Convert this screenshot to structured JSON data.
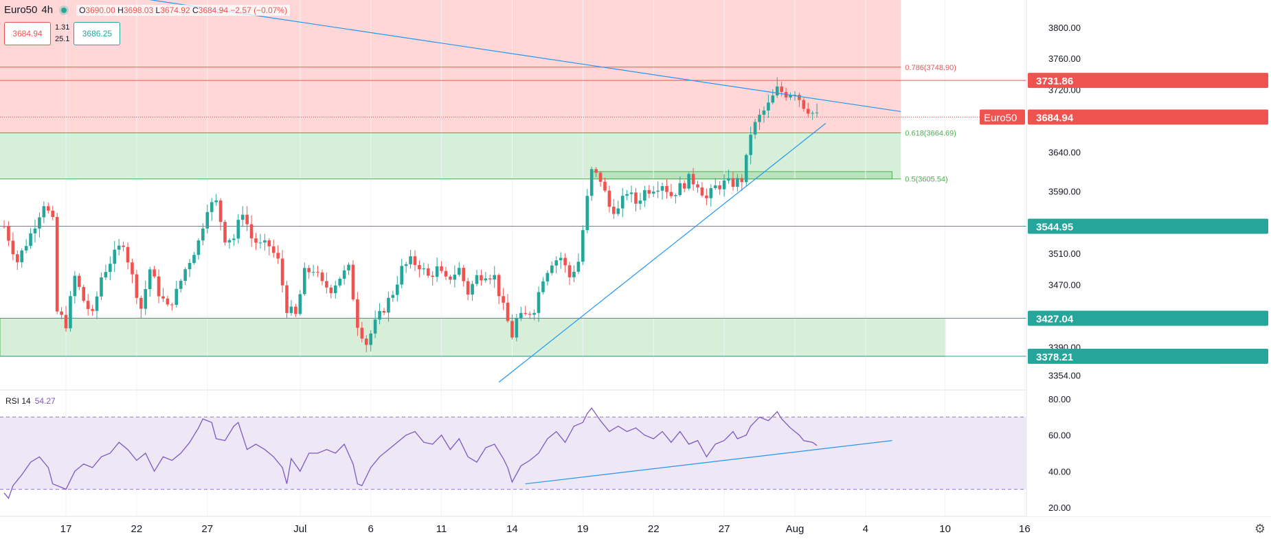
{
  "header": {
    "symbol": "Euro50",
    "interval": "4h",
    "ohlc": {
      "o": "3690.00",
      "h": "3698.03",
      "l": "3674.92",
      "c": "3684.94",
      "chg": "−2.57 (−0.07%)"
    },
    "sell_price": "3684.94",
    "buy_price": "3686.25",
    "spread_top": "1.31",
    "spread_bottom": "25.1"
  },
  "colors": {
    "up": "#26a69a",
    "down": "#ef5350",
    "red_zone": "#ffd7d7",
    "green_zone": "#d7efd9",
    "trend": "#2196f3",
    "rsi": "#7e57c2",
    "rsi_band": "#ede7f6"
  },
  "chart_data": [
    {
      "type": "candlestick",
      "y_range": [
        3335,
        3835
      ],
      "y_ticks": [
        "3800.00",
        "3760.00",
        "3720.00",
        "3640.00",
        "3590.00",
        "3510.00",
        "3470.00",
        "3390.00",
        "3354.00"
      ],
      "x_ticks": [
        {
          "label": "17",
          "bar": 14
        },
        {
          "label": "22",
          "bar": 30
        },
        {
          "label": "27",
          "bar": 46
        },
        {
          "label": "Jul",
          "bar": 67
        },
        {
          "label": "6",
          "bar": 83
        },
        {
          "label": "11",
          "bar": 99
        },
        {
          "label": "14",
          "bar": 115
        },
        {
          "label": "19",
          "bar": 131
        },
        {
          "label": "22",
          "bar": 147
        },
        {
          "label": "27",
          "bar": 163
        },
        {
          "label": "Aug",
          "bar": 179
        },
        {
          "label": "4",
          "bar": 195
        },
        {
          "label": "10",
          "bar": 213
        },
        {
          "label": "16",
          "bar": 231
        }
      ],
      "close_path": [
        [
          0,
          3545
        ],
        [
          3,
          3500
        ],
        [
          6,
          3535
        ],
        [
          9,
          3575
        ],
        [
          11,
          3550
        ],
        [
          12,
          3435
        ],
        [
          14,
          3420
        ],
        [
          16,
          3480
        ],
        [
          18,
          3450
        ],
        [
          20,
          3430
        ],
        [
          22,
          3480
        ],
        [
          24,
          3500
        ],
        [
          27,
          3525
        ],
        [
          29,
          3480
        ],
        [
          31,
          3440
        ],
        [
          33,
          3490
        ],
        [
          35,
          3460
        ],
        [
          37,
          3440
        ],
        [
          39,
          3460
        ],
        [
          41,
          3490
        ],
        [
          44,
          3525
        ],
        [
          46,
          3570
        ],
        [
          48,
          3575
        ],
        [
          50,
          3530
        ],
        [
          52,
          3530
        ],
        [
          54,
          3565
        ],
        [
          56,
          3530
        ],
        [
          58,
          3520
        ],
        [
          60,
          3520
        ],
        [
          62,
          3500
        ],
        [
          64,
          3440
        ],
        [
          66,
          3430
        ],
        [
          68,
          3485
        ],
        [
          70,
          3490
        ],
        [
          72,
          3470
        ],
        [
          74,
          3465
        ],
        [
          76,
          3480
        ],
        [
          78,
          3490
        ],
        [
          80,
          3420
        ],
        [
          82,
          3395
        ],
        [
          84,
          3420
        ],
        [
          86,
          3440
        ],
        [
          88,
          3460
        ],
        [
          90,
          3490
        ],
        [
          92,
          3500
        ],
        [
          94,
          3495
        ],
        [
          96,
          3480
        ],
        [
          98,
          3490
        ],
        [
          100,
          3475
        ],
        [
          103,
          3490
        ],
        [
          105,
          3460
        ],
        [
          107,
          3480
        ],
        [
          109,
          3485
        ],
        [
          111,
          3480
        ],
        [
          113,
          3440
        ],
        [
          115,
          3405
        ],
        [
          116,
          3425
        ],
        [
          118,
          3430
        ],
        [
          120,
          3440
        ],
        [
          122,
          3480
        ],
        [
          124,
          3500
        ],
        [
          126,
          3505
        ],
        [
          128,
          3480
        ],
        [
          130,
          3500
        ],
        [
          132,
          3580
        ],
        [
          133,
          3615
        ],
        [
          135,
          3605
        ],
        [
          137,
          3570
        ],
        [
          139,
          3565
        ],
        [
          141,
          3590
        ],
        [
          143,
          3575
        ],
        [
          145,
          3590
        ],
        [
          147,
          3595
        ],
        [
          149,
          3600
        ],
        [
          151,
          3585
        ],
        [
          153,
          3595
        ],
        [
          155,
          3605
        ],
        [
          157,
          3600
        ],
        [
          159,
          3580
        ],
        [
          161,
          3595
        ],
        [
          163,
          3600
        ],
        [
          165,
          3600
        ],
        [
          167,
          3605
        ],
        [
          168,
          3630
        ],
        [
          169,
          3665
        ],
        [
          171,
          3685
        ],
        [
          173,
          3700
        ],
        [
          175,
          3720
        ],
        [
          177,
          3715
        ],
        [
          179,
          3718
        ],
        [
          181,
          3700
        ],
        [
          183,
          3690
        ],
        [
          184,
          3686
        ]
      ],
      "levels": [
        {
          "label": "3731.86",
          "value": 3731.86,
          "color": "#ef5350"
        },
        {
          "label": "3544.95",
          "value": 3544.95,
          "color": "#26a69a"
        },
        {
          "label": "3427.04",
          "value": 3427.04,
          "color": "#26a69a"
        },
        {
          "label": "3378.21",
          "value": 3378.21,
          "color": "#26a69a"
        }
      ],
      "fib": [
        {
          "label": "0.786(3748.90)",
          "value": 3748.9,
          "color": "#ef5350"
        },
        {
          "label": "0.618(3664.69)",
          "value": 3664.69,
          "color": "#4caf50"
        },
        {
          "label": "0.5(3605.54)",
          "value": 3605.54,
          "color": "#4caf50"
        }
      ],
      "zones": [
        {
          "from": 3748.9,
          "to": 3835,
          "end_bar": 203,
          "kind": "red"
        },
        {
          "from": 3664.69,
          "to": 3748.9,
          "end_bar": 203,
          "kind": "red"
        },
        {
          "from": 3605.54,
          "to": 3664.69,
          "end_bar": 203,
          "kind": "green"
        },
        {
          "from": 3605.54,
          "to": 3615,
          "start_bar": 133,
          "end_bar": 201,
          "kind": "green-dark"
        },
        {
          "from": 3378.21,
          "to": 3427.04,
          "end_bar": 213,
          "kind": "green"
        }
      ],
      "trendlines": [
        {
          "from": [
            18,
            3848
          ],
          "to": [
            203,
            3692
          ]
        },
        {
          "from": [
            112,
            3345
          ],
          "to": [
            186,
            3677
          ]
        }
      ],
      "last_price": {
        "symbol": "Euro50",
        "value": 3684.94,
        "label": "3684.94"
      }
    },
    {
      "type": "line",
      "name": "RSI 14",
      "value_label": "54.27",
      "y_range": [
        15,
        85
      ],
      "y_ticks": [
        "80.00",
        "60.00",
        "40.00",
        "20.00"
      ],
      "band": [
        30,
        70
      ],
      "points": [
        [
          0,
          28
        ],
        [
          1,
          25
        ],
        [
          2,
          32
        ],
        [
          4,
          38
        ],
        [
          6,
          45
        ],
        [
          8,
          48
        ],
        [
          10,
          42
        ],
        [
          11,
          33
        ],
        [
          13,
          31
        ],
        [
          14,
          30
        ],
        [
          16,
          40
        ],
        [
          18,
          44
        ],
        [
          20,
          42
        ],
        [
          22,
          48
        ],
        [
          24,
          50
        ],
        [
          26,
          56
        ],
        [
          28,
          52
        ],
        [
          30,
          46
        ],
        [
          32,
          50
        ],
        [
          34,
          40
        ],
        [
          36,
          48
        ],
        [
          38,
          46
        ],
        [
          40,
          50
        ],
        [
          42,
          56
        ],
        [
          44,
          64
        ],
        [
          45,
          69
        ],
        [
          47,
          67
        ],
        [
          48,
          58
        ],
        [
          50,
          57
        ],
        [
          52,
          65
        ],
        [
          53,
          67
        ],
        [
          55,
          52
        ],
        [
          57,
          55
        ],
        [
          59,
          52
        ],
        [
          61,
          48
        ],
        [
          63,
          42
        ],
        [
          64,
          33
        ],
        [
          65,
          47
        ],
        [
          67,
          40
        ],
        [
          69,
          50
        ],
        [
          71,
          50
        ],
        [
          73,
          52
        ],
        [
          75,
          50
        ],
        [
          77,
          55
        ],
        [
          79,
          44
        ],
        [
          80,
          33
        ],
        [
          81,
          32
        ],
        [
          83,
          42
        ],
        [
          85,
          48
        ],
        [
          87,
          52
        ],
        [
          89,
          56
        ],
        [
          91,
          60
        ],
        [
          93,
          62
        ],
        [
          95,
          56
        ],
        [
          97,
          55
        ],
        [
          99,
          60
        ],
        [
          101,
          52
        ],
        [
          103,
          58
        ],
        [
          105,
          48
        ],
        [
          107,
          45
        ],
        [
          109,
          53
        ],
        [
          111,
          55
        ],
        [
          113,
          47
        ],
        [
          114,
          42
        ],
        [
          115,
          34
        ],
        [
          117,
          43
        ],
        [
          119,
          46
        ],
        [
          121,
          50
        ],
        [
          123,
          58
        ],
        [
          125,
          62
        ],
        [
          127,
          56
        ],
        [
          129,
          65
        ],
        [
          131,
          67
        ],
        [
          132,
          72
        ],
        [
          133,
          75
        ],
        [
          135,
          68
        ],
        [
          137,
          62
        ],
        [
          139,
          65
        ],
        [
          141,
          62
        ],
        [
          143,
          64
        ],
        [
          145,
          60
        ],
        [
          147,
          58
        ],
        [
          149,
          62
        ],
        [
          151,
          56
        ],
        [
          153,
          62
        ],
        [
          155,
          55
        ],
        [
          157,
          57
        ],
        [
          159,
          48
        ],
        [
          161,
          55
        ],
        [
          163,
          57
        ],
        [
          165,
          62
        ],
        [
          166,
          58
        ],
        [
          168,
          60
        ],
        [
          169,
          65
        ],
        [
          171,
          70
        ],
        [
          173,
          68
        ],
        [
          175,
          73
        ],
        [
          176,
          69
        ],
        [
          178,
          64
        ],
        [
          180,
          60
        ],
        [
          181,
          57
        ],
        [
          183,
          56
        ],
        [
          184,
          54.27
        ]
      ],
      "trendline": {
        "from": [
          118,
          33
        ],
        "to": [
          201,
          57
        ]
      }
    }
  ]
}
